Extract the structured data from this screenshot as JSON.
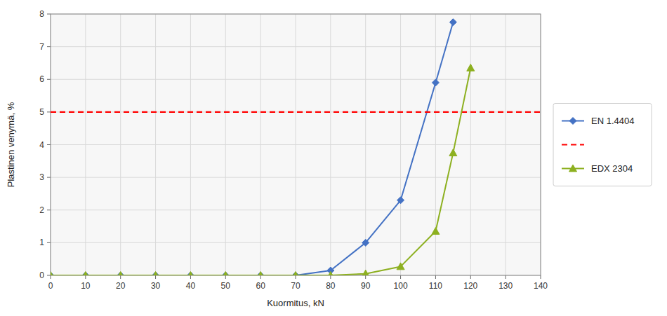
{
  "chart_data": {
    "type": "line",
    "xlabel": "Kuormitus, kN",
    "ylabel": "Plastinen venymä, %",
    "xlim": [
      0,
      140
    ],
    "ylim": [
      0,
      8
    ],
    "xticks": [
      0,
      10,
      20,
      30,
      40,
      50,
      60,
      70,
      80,
      90,
      100,
      110,
      120,
      130,
      140
    ],
    "yticks": [
      0,
      1,
      2,
      3,
      4,
      5,
      6,
      7,
      8
    ],
    "grid": true,
    "legend": "right",
    "series": [
      {
        "name": "EN 1.4404",
        "color": "#4472C4",
        "marker": "diamond",
        "line_style": "solid",
        "x": [
          0,
          10,
          20,
          30,
          40,
          50,
          60,
          70,
          80,
          90,
          100,
          110,
          115
        ],
        "values": [
          0,
          0,
          0,
          0,
          0,
          0,
          0,
          0,
          0.15,
          1.0,
          2.3,
          5.9,
          7.75
        ]
      },
      {
        "type": "hline",
        "color": "#FF0000",
        "line_style": "dashed",
        "values": [
          5.0
        ]
      },
      {
        "name": "EDX 2304",
        "color": "#8db020",
        "marker": "triangle",
        "line_style": "solid",
        "x": [
          0,
          10,
          20,
          30,
          40,
          50,
          60,
          70,
          80,
          90,
          100,
          110,
          115,
          120
        ],
        "values": [
          0,
          0,
          0,
          0,
          0,
          0,
          0,
          0,
          0,
          0.05,
          0.27,
          1.35,
          3.75,
          6.35
        ]
      }
    ]
  }
}
